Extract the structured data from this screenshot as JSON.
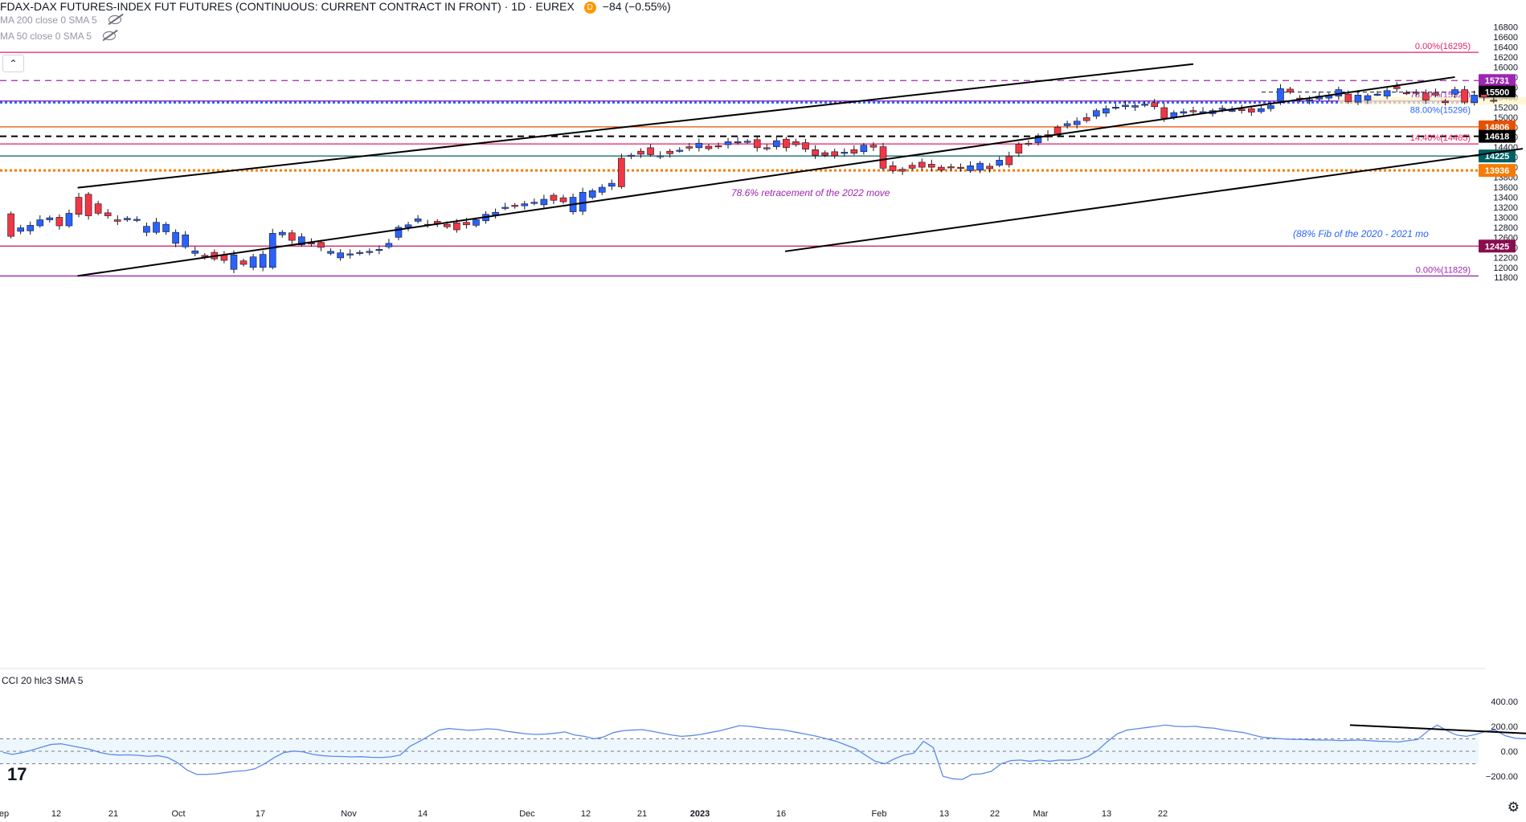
{
  "header": {
    "title": "FDAX-DAX FUTURES-INDEX FUT FUTURES (CONTINUOUS: CURRENT CONTRACT IN FRONT) · 1D · EUREX",
    "badge": "D",
    "change": "−84 (−0.55%)",
    "ma200": "MA 200 close 0 SMA 5",
    "ma50": "MA 50 close 0 SMA 5",
    "collapse_glyph": "⌃"
  },
  "cci_label": "CCI 20 hlc3 SMA 5",
  "logo": "17",
  "settings_icon": "gear-icon",
  "colors": {
    "up": "#2962ff",
    "down": "#f23645",
    "channel": "#000000",
    "fib": "#e91e63",
    "purple": "#9c27b0",
    "teal": "#006064",
    "orange": "#e65100"
  },
  "chart_data": {
    "type": "candlestick",
    "price_axis": {
      "min": 11700,
      "max": 16950,
      "ticks": [
        11800,
        12000,
        12200,
        12400,
        12600,
        12800,
        13000,
        13200,
        13400,
        13600,
        13800,
        14000,
        14200,
        14400,
        14600,
        14800,
        15000,
        15200,
        15400,
        15600,
        15800,
        16000,
        16200,
        16400,
        16600,
        16800
      ]
    },
    "time_axis": [
      {
        "label": "ep",
        "x": 5
      },
      {
        "label": "12",
        "x": 70
      },
      {
        "label": "21",
        "x": 141
      },
      {
        "label": "Oct",
        "x": 222
      },
      {
        "label": "17",
        "x": 324
      },
      {
        "label": "Nov",
        "x": 434
      },
      {
        "label": "14",
        "x": 526
      },
      {
        "label": "Dec",
        "x": 656
      },
      {
        "label": "12",
        "x": 729
      },
      {
        "label": "21",
        "x": 799
      },
      {
        "label": "2023",
        "x": 871
      },
      {
        "label": "16",
        "x": 972
      },
      {
        "label": "Feb",
        "x": 1094
      },
      {
        "label": "13",
        "x": 1175
      },
      {
        "label": "22",
        "x": 1238
      },
      {
        "label": "Mar",
        "x": 1295
      },
      {
        "label": "13",
        "x": 1377
      },
      {
        "label": "22",
        "x": 1447
      }
    ],
    "candles": [
      [
        13070,
        12620
      ],
      [
        12720,
        12790
      ],
      [
        12730,
        12840
      ],
      [
        12830,
        12950
      ],
      [
        12950,
        12990
      ],
      [
        13000,
        12830
      ],
      [
        12830,
        13080
      ],
      [
        13400,
        13060
      ],
      [
        13460,
        13030
      ],
      [
        13270,
        13080
      ],
      [
        13090,
        13030
      ],
      [
        12950,
        12920
      ],
      [
        12950,
        12980
      ],
      [
        12960,
        12960
      ],
      [
        12700,
        12820
      ],
      [
        12700,
        12900
      ],
      [
        12710,
        12860
      ],
      [
        12480,
        12700
      ],
      [
        12410,
        12650
      ],
      [
        12280,
        12330
      ],
      [
        12240,
        12230
      ],
      [
        12300,
        12170
      ],
      [
        12250,
        12140
      ],
      [
        11960,
        12250
      ],
      [
        12130,
        12060
      ],
      [
        12000,
        12210
      ],
      [
        12000,
        12260
      ],
      [
        12000,
        12680
      ],
      [
        12650,
        12700
      ],
      [
        12690,
        12540
      ],
      [
        12450,
        12610
      ],
      [
        12490,
        12470
      ],
      [
        12500,
        12400
      ],
      [
        12280,
        12320
      ],
      [
        12190,
        12290
      ],
      [
        12250,
        12270
      ],
      [
        12280,
        12300
      ],
      [
        12300,
        12320
      ],
      [
        12340,
        12360
      ],
      [
        12410,
        12480
      ],
      [
        12600,
        12800
      ],
      [
        12800,
        12850
      ],
      [
        12920,
        12970
      ],
      [
        12860,
        12850
      ],
      [
        12920,
        12880
      ],
      [
        12860,
        12810
      ],
      [
        12890,
        12750
      ],
      [
        12900,
        12850
      ],
      [
        12840,
        12950
      ],
      [
        12930,
        13060
      ],
      [
        13050,
        13100
      ],
      [
        13180,
        13200
      ],
      [
        13240,
        13230
      ],
      [
        13230,
        13270
      ],
      [
        13280,
        13300
      ],
      [
        13250,
        13360
      ],
      [
        13440,
        13340
      ],
      [
        13390,
        13310
      ],
      [
        13110,
        13400
      ],
      [
        13120,
        13500
      ],
      [
        13400,
        13530
      ],
      [
        13500,
        13600
      ],
      [
        13620,
        13680
      ],
      [
        14180,
        13610
      ],
      [
        14220,
        14240
      ],
      [
        14320,
        14260
      ],
      [
        14390,
        14250
      ],
      [
        14220,
        14230
      ],
      [
        14320,
        14270
      ],
      [
        14330,
        14340
      ],
      [
        14410,
        14380
      ],
      [
        14390,
        14480
      ],
      [
        14420,
        14370
      ],
      [
        14430,
        14420
      ],
      [
        14450,
        14510
      ],
      [
        14490,
        14510
      ],
      [
        14520,
        14520
      ],
      [
        14550,
        14390
      ],
      [
        14390,
        14370
      ],
      [
        14410,
        14530
      ],
      [
        14560,
        14390
      ],
      [
        14510,
        14450
      ],
      [
        14490,
        14360
      ],
      [
        14350,
        14240
      ],
      [
        14290,
        14240
      ],
      [
        14310,
        14230
      ],
      [
        14290,
        14300
      ],
      [
        14350,
        14280
      ],
      [
        14310,
        14440
      ],
      [
        14440,
        14400
      ],
      [
        14410,
        13980
      ],
      [
        14030,
        13930
      ],
      [
        13960,
        13920
      ],
      [
        14040,
        13980
      ],
      [
        14100,
        14000
      ],
      [
        14060,
        14000
      ],
      [
        14000,
        13940
      ],
      [
        14010,
        13990
      ],
      [
        14000,
        13990
      ],
      [
        13930,
        14030
      ],
      [
        13940,
        14080
      ],
      [
        14020,
        13970
      ],
      [
        14040,
        14140
      ],
      [
        14220,
        14050
      ],
      [
        14460,
        14280
      ],
      [
        14480,
        14460
      ],
      [
        14490,
        14600
      ],
      [
        14650,
        14600
      ],
      [
        14800,
        14640
      ],
      [
        14830,
        14870
      ],
      [
        14850,
        14920
      ],
      [
        14990,
        14930
      ],
      [
        15020,
        15130
      ],
      [
        15080,
        15170
      ],
      [
        15190,
        15200
      ],
      [
        15210,
        15240
      ],
      [
        15200,
        15230
      ],
      [
        15240,
        15260
      ],
      [
        15290,
        15210
      ],
      [
        15190,
        14980
      ],
      [
        14990,
        15090
      ],
      [
        15080,
        15110
      ],
      [
        15130,
        15120
      ],
      [
        15100,
        15110
      ],
      [
        15070,
        15130
      ],
      [
        15170,
        15180
      ],
      [
        15140,
        15140
      ],
      [
        15160,
        15130
      ],
      [
        15170,
        15100
      ],
      [
        15110,
        15170
      ],
      [
        15170,
        15230
      ],
      [
        15320,
        15570
      ],
      [
        15560,
        15500
      ],
      [
        15380,
        15360
      ],
      [
        15330,
        15350
      ],
      [
        15360,
        15420
      ],
      [
        15380,
        15440
      ],
      [
        15420,
        15550
      ],
      [
        15460,
        15310
      ],
      [
        15300,
        15440
      ],
      [
        15340,
        15430
      ],
      [
        15460,
        15460
      ],
      [
        15420,
        15530
      ],
      [
        15610,
        15570
      ],
      [
        15490,
        15480
      ],
      [
        15500,
        15480
      ],
      [
        15480,
        15340
      ],
      [
        15480,
        15440
      ],
      [
        15320,
        15290
      ],
      [
        15460,
        15550
      ],
      [
        15550,
        15300
      ],
      [
        15290,
        15440
      ],
      [
        15450,
        15400
      ],
      [
        15340,
        15320
      ]
    ],
    "wedge_lines": [
      [
        [
          0,
          13590
        ],
        [
          122,
          16060
        ]
      ],
      [
        [
          0,
          11830
        ],
        [
          149,
          15800
        ]
      ],
      [
        [
          73,
          12320
        ],
        [
          156,
          14370
        ]
      ]
    ],
    "horizontal_levels": [
      {
        "price": 16295,
        "color": "#e91e63",
        "style": "solid",
        "label": "0.00%(16295)",
        "label_color": "#e91e63"
      },
      {
        "price": 15731,
        "color": "#9c27b0",
        "style": "dashed",
        "tag": "15731",
        "tag_bg": "#9c27b0"
      },
      {
        "price": 15500,
        "color": "#131722",
        "style": "dashed-short",
        "tag": "15500",
        "tag_bg": "#000000"
      },
      {
        "price": 15323,
        "color": "#9c27b0",
        "style": "solid",
        "label": "78.60%(15323)",
        "label_color": "#9c27b0"
      },
      {
        "price": 15296,
        "color": "#2962ff",
        "style": "dotted",
        "label": "88.00%(15296)",
        "label_color": "#2962ff"
      },
      {
        "price": 14806,
        "color": "#e65100",
        "style": "solid",
        "tag": "14806",
        "tag_bg": "#e65100"
      },
      {
        "price": 14618,
        "color": "#000000",
        "style": "dashed",
        "tag": "14618",
        "tag_bg": "#000000"
      },
      {
        "price": 14465,
        "color": "#e91e63",
        "style": "solid",
        "label": "14.40%(14465)",
        "label_color": "#e91e63"
      },
      {
        "price": 14225,
        "color": "#006064",
        "style": "solid",
        "tag": "14225",
        "tag_bg": "#006064"
      },
      {
        "price": 13936,
        "color": "#f57c00",
        "style": "dotted",
        "tag": "13936",
        "tag_bg": "#f57c00"
      },
      {
        "price": 12425,
        "color": "#c2185b",
        "style": "solid",
        "tag": "12425",
        "tag_bg": "#880e4f"
      },
      {
        "price": 11829,
        "color": "#9c27b0",
        "style": "solid",
        "label": "0.00%(11829)",
        "label_color": "#9c27b0"
      }
    ],
    "annotations": [
      {
        "text": "78.6% retracement of the 2022 move",
        "color": "#9c27b0"
      },
      {
        "text": "(88% Fib of the 2020 - 2021 mo",
        "color": "#2962ff"
      }
    ],
    "cci": {
      "ticks": [
        400,
        200,
        0,
        -200
      ],
      "tick_labels": [
        "400.00",
        "200.00",
        "0.00",
        "−200.00"
      ],
      "band": [
        100,
        -100
      ],
      "values": [
        -8,
        -25,
        -10,
        10,
        33,
        55,
        60,
        45,
        30,
        15,
        -10,
        -25,
        -30,
        -28,
        -33,
        -40,
        -35,
        -50,
        -90,
        -150,
        -185,
        -185,
        -180,
        -170,
        -160,
        -155,
        -140,
        -100,
        -50,
        -10,
        2,
        -5,
        -25,
        -35,
        -40,
        -42,
        -45,
        -43,
        -48,
        -50,
        -45,
        -30,
        40,
        80,
        125,
        170,
        182,
        175,
        168,
        172,
        180,
        175,
        160,
        150,
        140,
        135,
        138,
        145,
        155,
        130,
        120,
        100,
        115,
        150,
        165,
        170,
        173,
        160,
        145,
        130,
        120,
        125,
        135,
        150,
        165,
        185,
        205,
        200,
        190,
        180,
        175,
        165,
        150,
        135,
        120,
        100,
        80,
        50,
        20,
        -30,
        -80,
        -100,
        -60,
        -30,
        -15,
        80,
        30,
        -200,
        -220,
        -225,
        -185,
        -180,
        -160,
        -100,
        -75,
        -70,
        -80,
        -70,
        -80,
        -70,
        -72,
        -65,
        -40,
        10,
        80,
        140,
        170,
        180,
        190,
        200,
        210,
        200,
        197,
        200,
        190,
        185,
        170,
        160,
        150,
        130,
        112,
        105,
        100,
        96,
        95,
        92,
        90,
        90,
        85,
        88,
        90,
        85,
        80,
        78,
        74,
        85,
        95,
        160,
        210,
        165,
        130,
        120,
        135,
        160,
        170,
        125,
        105,
        100,
        115,
        110,
        125,
        135,
        110,
        75,
        60,
        72,
        20,
        -35,
        -45,
        -30,
        -50,
        -60,
        -75,
        -100
      ],
      "trend_line": [
        [
          139,
          210
        ],
        [
          179,
          -70
        ]
      ]
    }
  }
}
